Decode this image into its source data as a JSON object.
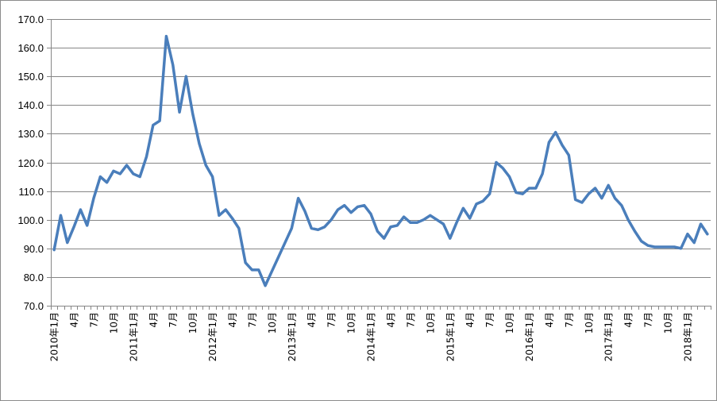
{
  "chart_data": {
    "type": "line",
    "title": "",
    "xlabel": "",
    "ylabel": "",
    "ylim": [
      70,
      170
    ],
    "yticks": [
      "70.0",
      "80.0",
      "90.0",
      "100.0",
      "110.0",
      "120.0",
      "130.0",
      "140.0",
      "150.0",
      "160.0",
      "170.0"
    ],
    "grid": "horizontal",
    "legend": "none",
    "x_tick_labels": [
      "2010年1月",
      "4月",
      "7月",
      "10月",
      "2011年1月",
      "4月",
      "7月",
      "10月",
      "2012年1月",
      "4月",
      "7月",
      "10月",
      "2013年1月",
      "4月",
      "7月",
      "10月",
      "2014年1月",
      "4月",
      "7月",
      "10月",
      "2015年1月",
      "4月",
      "7月",
      "10月",
      "2016年1月",
      "4月",
      "7月",
      "10月",
      "2017年1月",
      "4月",
      "7月",
      "10月",
      "2018年1月"
    ],
    "series": [
      {
        "color": "#4a7ebb",
        "values": [
          89.5,
          101.5,
          92.0,
          97.5,
          103.5,
          98.0,
          107.5,
          115.0,
          113.0,
          117.0,
          116.0,
          119.0,
          116.0,
          115.0,
          122.0,
          133.0,
          134.5,
          164.0,
          154.0,
          137.5,
          150.0,
          137.0,
          126.5,
          119.0,
          115.0,
          101.5,
          103.5,
          100.5,
          97.0,
          85.0,
          82.5,
          82.5,
          77.0,
          82.0,
          87.0,
          92.0,
          97.0,
          107.5,
          103.0,
          97.0,
          96.5,
          97.5,
          100.0,
          103.5,
          105.0,
          102.5,
          104.5,
          105.0,
          102.0,
          96.0,
          93.5,
          97.5,
          98.0,
          101.0,
          99.0,
          99.0,
          100.0,
          101.5,
          100.0,
          98.5,
          93.5,
          99.0,
          104.0,
          100.5,
          105.5,
          106.5,
          109.0,
          120.0,
          118.0,
          115.0,
          109.5,
          109.0,
          111.0,
          111.0,
          116.0,
          127.0,
          130.5,
          126.0,
          122.5,
          107.0,
          106.0,
          109.0,
          111.0,
          107.5,
          112.0,
          107.5,
          105.0,
          100.0,
          96.0,
          92.5,
          91.0,
          90.5,
          90.5,
          90.5,
          90.5,
          90.0,
          95.0,
          92.0,
          98.5,
          95.0
        ]
      }
    ]
  },
  "colors": {
    "line": "#4a7ebb",
    "grid": "#868686",
    "axis": "#868686",
    "border": "#8c8c8c"
  }
}
